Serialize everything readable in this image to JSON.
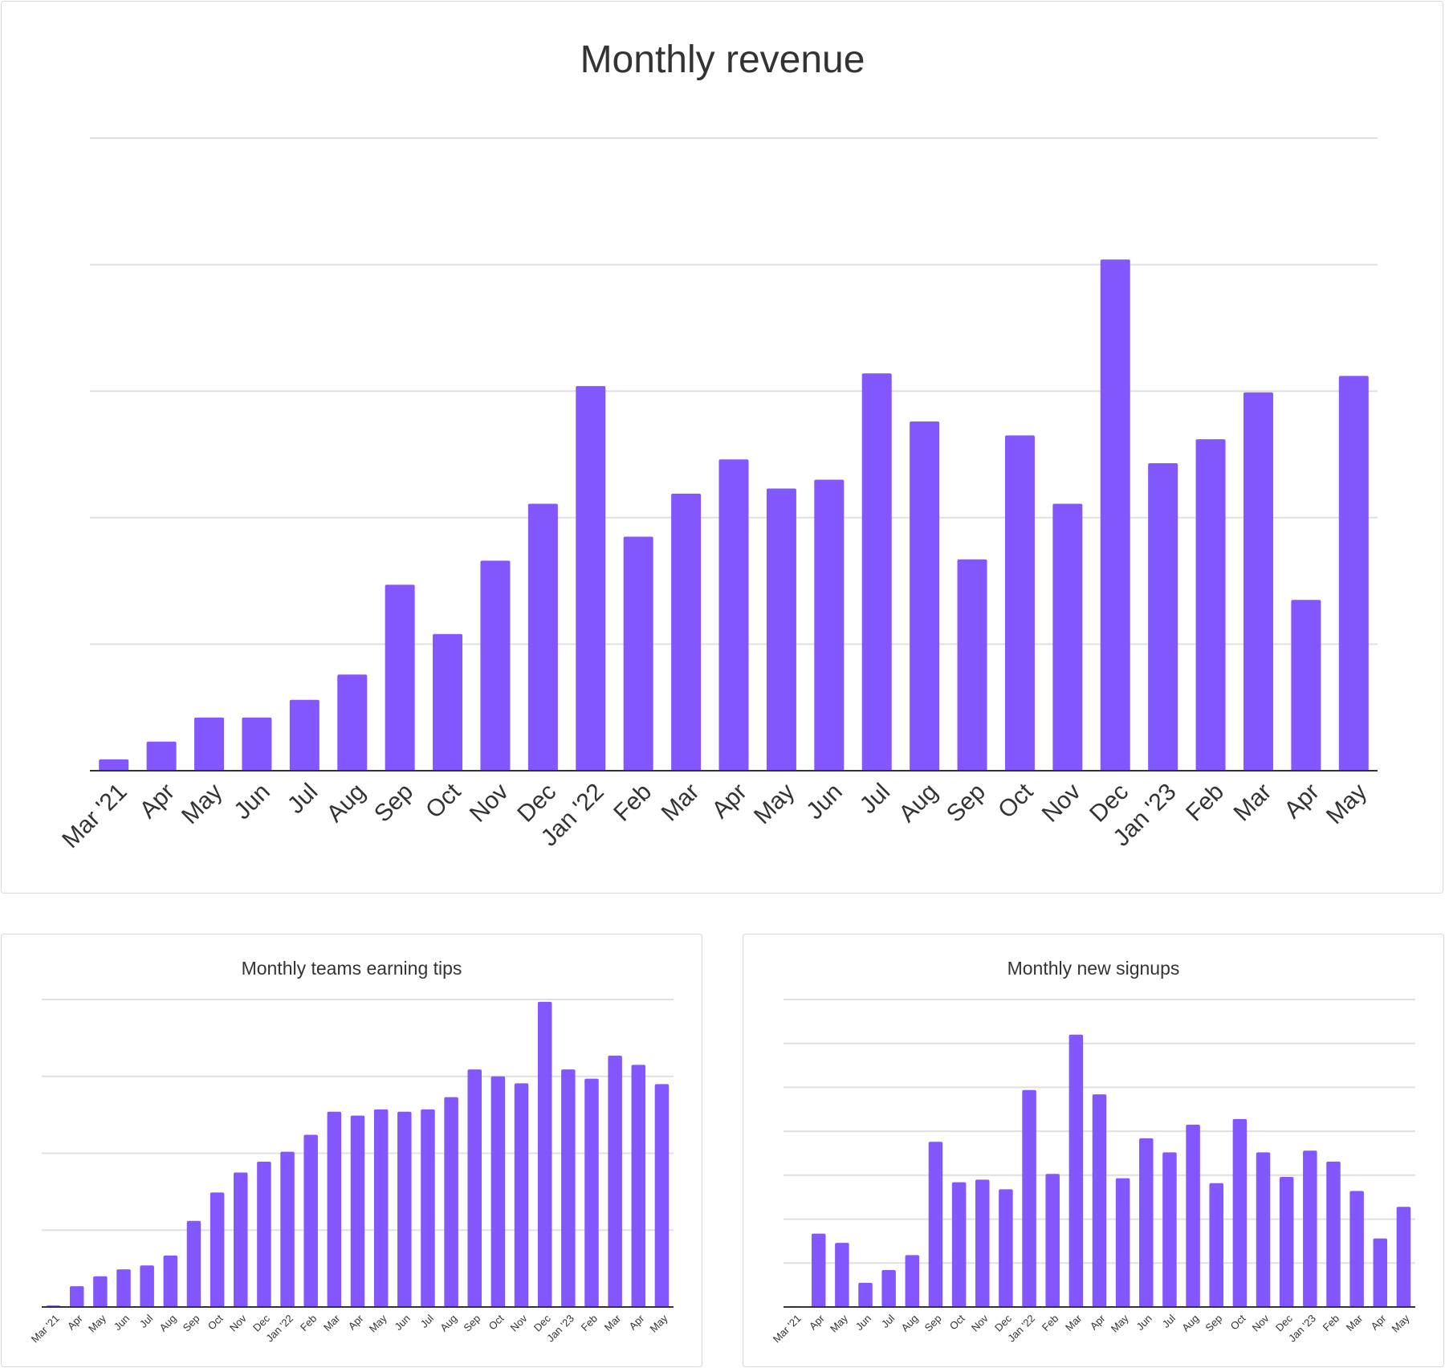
{
  "chart_data": [
    {
      "type": "bar",
      "title": "Monthly revenue",
      "xlabel": "",
      "ylabel": "",
      "y_tick_labels_shown": false,
      "grid": true,
      "gridlines": 5,
      "ylim": [
        0,
        5
      ],
      "color": "#8257fe",
      "categories": [
        "Mar '21",
        "Apr",
        "May",
        "Jun",
        "Jul",
        "Aug",
        "Sep",
        "Oct",
        "Nov",
        "Dec",
        "Jan '22",
        "Feb",
        "Mar",
        "Apr",
        "May",
        "Jun",
        "Jul",
        "Aug",
        "Sep",
        "Oct",
        "Nov",
        "Dec",
        "Jan '23",
        "Feb",
        "Mar",
        "Apr",
        "May"
      ],
      "values": [
        0.09,
        0.23,
        0.42,
        0.42,
        0.56,
        0.76,
        1.47,
        1.08,
        1.66,
        2.11,
        3.04,
        1.85,
        2.19,
        2.46,
        2.23,
        2.3,
        3.14,
        2.76,
        1.67,
        2.65,
        2.11,
        4.04,
        2.43,
        2.62,
        2.99,
        1.35,
        3.12
      ]
    },
    {
      "type": "bar",
      "title": "Monthly teams earning tips",
      "xlabel": "",
      "ylabel": "",
      "y_tick_labels_shown": false,
      "grid": true,
      "gridlines": 4,
      "ylim": [
        0,
        4
      ],
      "color": "#8257fe",
      "categories": [
        "Mar '21",
        "Apr",
        "May",
        "Jun",
        "Jul",
        "Aug",
        "Sep",
        "Oct",
        "Nov",
        "Dec",
        "Jan '22",
        "Feb",
        "Mar",
        "Apr",
        "May",
        "Jun",
        "Jul",
        "Aug",
        "Sep",
        "Oct",
        "Nov",
        "Dec",
        "Jan '23",
        "Feb",
        "Mar",
        "Apr",
        "May"
      ],
      "values": [
        0.02,
        0.27,
        0.4,
        0.49,
        0.54,
        0.67,
        1.12,
        1.49,
        1.75,
        1.89,
        2.02,
        2.24,
        2.54,
        2.49,
        2.57,
        2.54,
        2.57,
        2.73,
        3.09,
        3.0,
        2.91,
        3.97,
        3.09,
        2.97,
        3.27,
        3.15,
        2.9
      ]
    },
    {
      "type": "bar",
      "title": "Monthly new signups",
      "xlabel": "",
      "ylabel": "",
      "y_tick_labels_shown": false,
      "grid": true,
      "gridlines": 7,
      "ylim": [
        0,
        7
      ],
      "color": "#8257fe",
      "categories": [
        "Mar '21",
        "Apr",
        "May",
        "Jun",
        "Jul",
        "Aug",
        "Sep",
        "Oct",
        "Nov",
        "Dec",
        "Jan '22",
        "Feb",
        "Mar",
        "Apr",
        "May",
        "Jun",
        "Jul",
        "Aug",
        "Sep",
        "Oct",
        "Nov",
        "Dec",
        "Jan '23",
        "Feb",
        "Mar",
        "Apr",
        "May"
      ],
      "values": [
        0.02,
        1.67,
        1.46,
        0.55,
        0.84,
        1.18,
        3.76,
        2.84,
        2.9,
        2.68,
        4.94,
        3.03,
        6.2,
        4.84,
        2.93,
        3.84,
        3.52,
        4.15,
        2.82,
        4.28,
        3.52,
        2.96,
        3.56,
        3.31,
        2.64,
        1.56,
        2.28
      ]
    }
  ]
}
